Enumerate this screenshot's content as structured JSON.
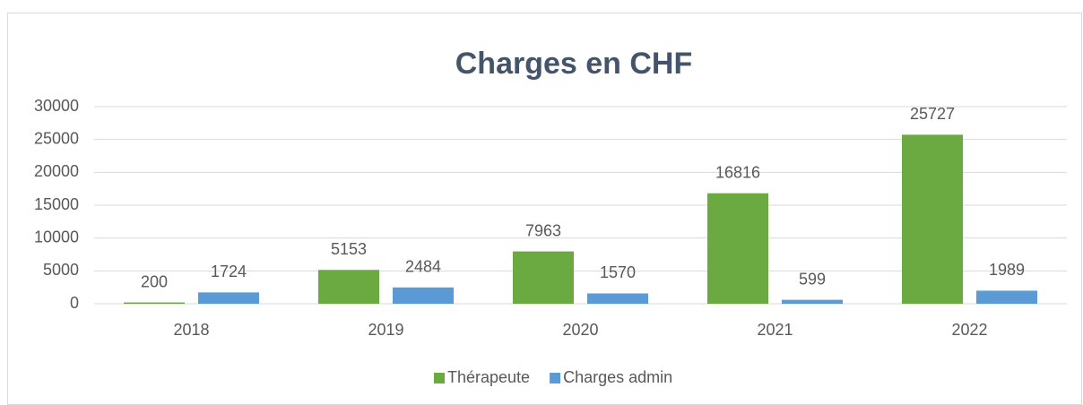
{
  "chart_data": {
    "type": "bar",
    "title": "Charges en CHF",
    "categories": [
      "2018",
      "2019",
      "2020",
      "2021",
      "2022"
    ],
    "series": [
      {
        "name": "Thérapeute",
        "color": "#6aaa40",
        "values": [
          200,
          5153,
          7963,
          16816,
          25727
        ]
      },
      {
        "name": "Charges admin",
        "color": "#5b9bd5",
        "values": [
          1724,
          2484,
          1570,
          599,
          1989
        ]
      }
    ],
    "ylim": [
      0,
      30000
    ],
    "yticks": [
      0,
      5000,
      10000,
      15000,
      20000,
      25000,
      30000
    ],
    "grid": true,
    "legend": "bottom"
  }
}
